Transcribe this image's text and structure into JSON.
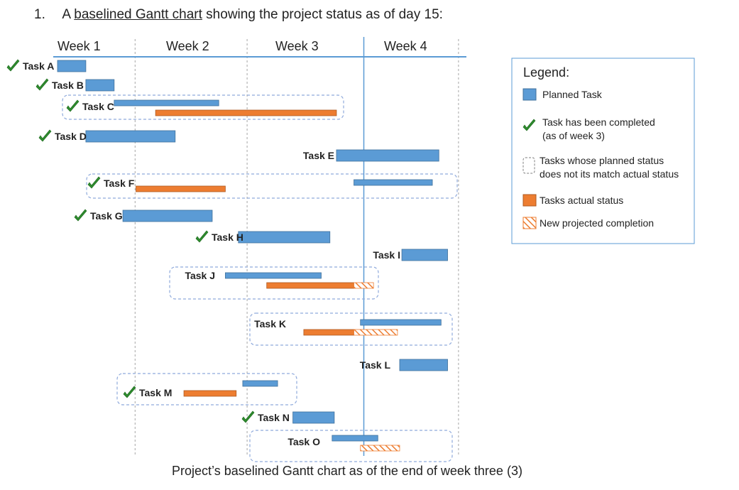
{
  "question": {
    "number": "1.",
    "prefix": "A ",
    "link_text": "baselined Gantt chart",
    "suffix": " showing the project status as of day 15:"
  },
  "caption": "Project’s baselined Gantt chart as of the end of week three (3)",
  "colors": {
    "planned": "#5b9bd5",
    "planned_border": "#41719c",
    "actual": "#ed7d31",
    "actual_border": "#ae5a21",
    "projected": "#ed7d31",
    "check": "#2e8b2e",
    "axis": "#5b9bd5",
    "grid": "#a6a6a6",
    "group_border": "#8faadc"
  },
  "chart_data": {
    "type": "gantt",
    "x_axis": {
      "unit": "day",
      "ticks": [
        "Week 1",
        "Week 2",
        "Week 3",
        "Week 4"
      ],
      "range": [
        0,
        20
      ],
      "status_day": 15
    },
    "tasks": [
      {
        "name": "Task A",
        "completed": true,
        "planned": [
          0,
          1.3
        ]
      },
      {
        "name": "Task B",
        "completed": true,
        "planned": [
          1.3,
          2.6
        ]
      },
      {
        "name": "Task C",
        "completed": true,
        "planned": [
          2.6,
          7.4
        ],
        "actual": [
          4.5,
          12.8
        ],
        "mismatch": true
      },
      {
        "name": "Task D",
        "completed": true,
        "planned": [
          1.3,
          5.4
        ]
      },
      {
        "name": "Task E",
        "completed": false,
        "planned": [
          12.8,
          17.5
        ]
      },
      {
        "name": "Task F",
        "completed": true,
        "planned": [
          13.6,
          17.2
        ],
        "actual": [
          3.6,
          7.7
        ],
        "mismatch": true
      },
      {
        "name": "Task G",
        "completed": true,
        "planned": [
          3.0,
          7.1
        ]
      },
      {
        "name": "Task H",
        "completed": true,
        "planned": [
          8.3,
          12.5
        ]
      },
      {
        "name": "Task I",
        "completed": false,
        "planned": [
          15.8,
          17.9
        ]
      },
      {
        "name": "Task J",
        "completed": false,
        "planned": [
          7.7,
          12.1
        ],
        "actual": [
          9.6,
          13.6
        ],
        "projected": [
          13.6,
          14.5
        ],
        "mismatch": true
      },
      {
        "name": "Task K",
        "completed": false,
        "planned": [
          13.9,
          17.6
        ],
        "actual": [
          11.3,
          13.6
        ],
        "projected": [
          13.6,
          15.6
        ],
        "mismatch": true
      },
      {
        "name": "Task L",
        "completed": false,
        "planned": [
          15.7,
          17.9
        ]
      },
      {
        "name": "Task M",
        "completed": true,
        "planned": [
          8.5,
          10.1
        ],
        "actual": [
          5.8,
          8.2
        ],
        "mismatch": true
      },
      {
        "name": "Task N",
        "completed": true,
        "planned": [
          10.8,
          12.7
        ]
      },
      {
        "name": "Task O",
        "completed": false,
        "planned": [
          12.6,
          14.7
        ],
        "projected": [
          13.9,
          15.7
        ],
        "mismatch": true
      }
    ],
    "legend": {
      "title": "Legend:",
      "entries": [
        {
          "key": "planned",
          "label": [
            "Planned Task"
          ]
        },
        {
          "key": "check",
          "label": [
            "Task has been completed",
            "(as of week 3)"
          ]
        },
        {
          "key": "mismatch",
          "label": [
            "Tasks whose planned status",
            "does not its match actual status"
          ]
        },
        {
          "key": "actual",
          "label": [
            "Tasks actual status"
          ]
        },
        {
          "key": "projected",
          "label": [
            "New projected completion"
          ]
        }
      ]
    }
  }
}
